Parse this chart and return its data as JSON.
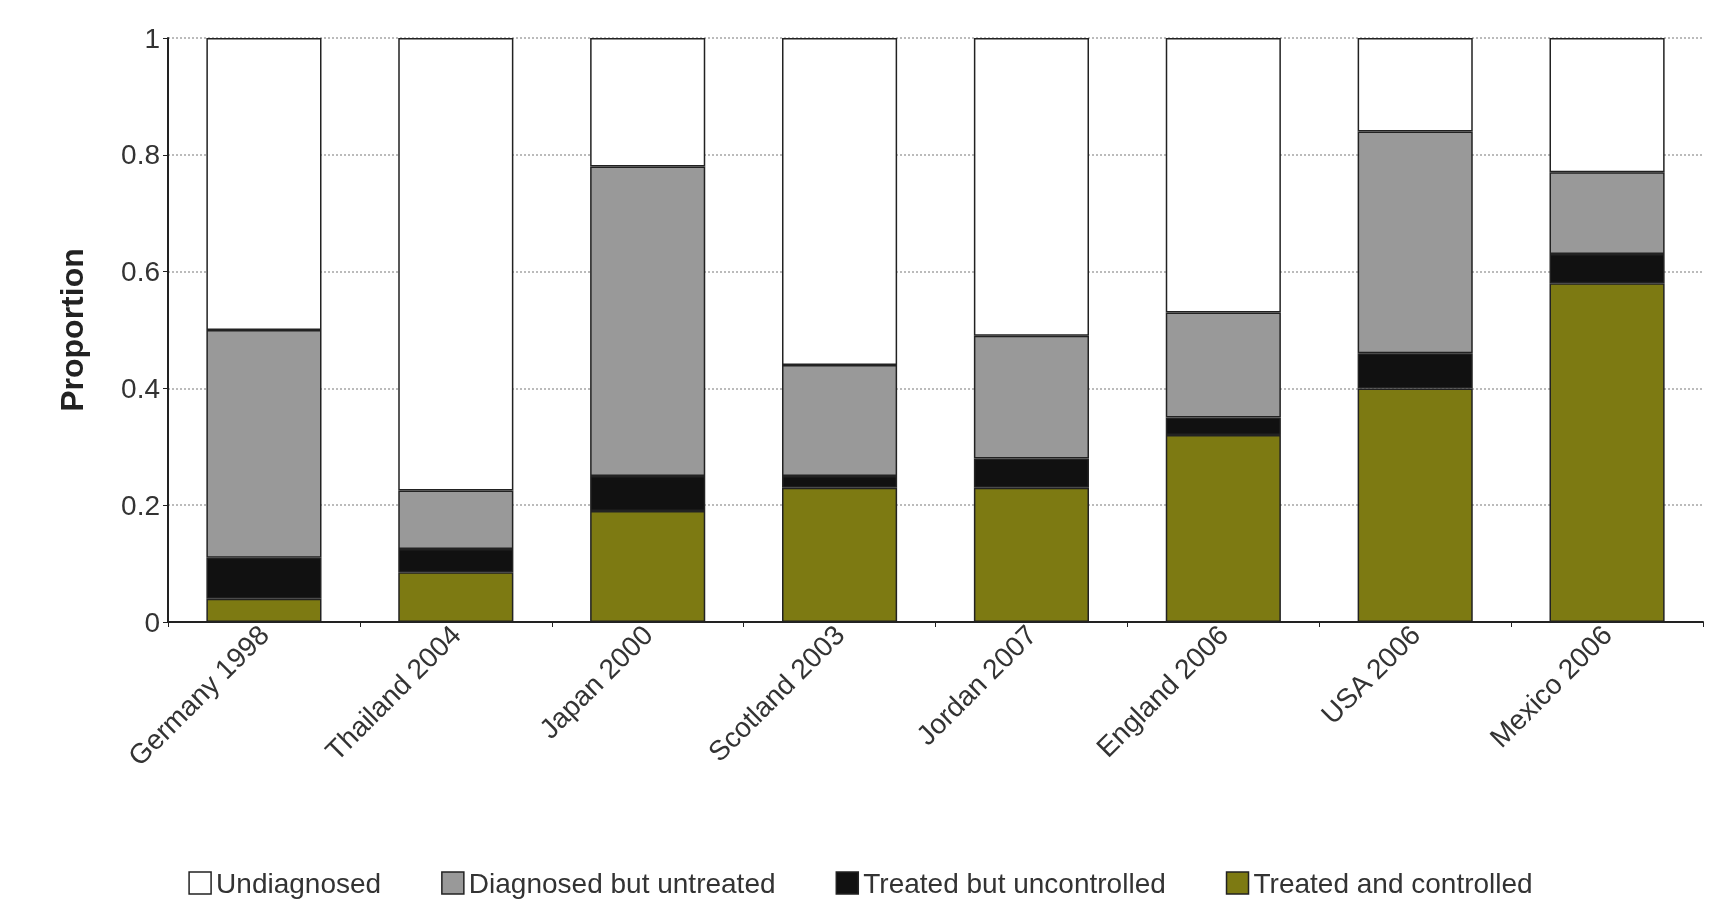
{
  "chart_data": {
    "type": "bar",
    "stacked": true,
    "ylabel": "Proportion",
    "categories": [
      "Germany 1998",
      "Thailand 2004",
      "Japan 2000",
      "Scotland 2003",
      "Jordan 2007",
      "England 2006",
      "USA 2006",
      "Mexico 2006"
    ],
    "series": [
      {
        "name": "Treated and controlled",
        "color": "#7d7a12",
        "values": [
          0.04,
          0.085,
          0.19,
          0.23,
          0.23,
          0.32,
          0.4,
          0.58
        ]
      },
      {
        "name": "Treated but uncontrolled",
        "color": "#111111",
        "values": [
          0.07,
          0.04,
          0.06,
          0.02,
          0.05,
          0.03,
          0.06,
          0.05
        ]
      },
      {
        "name": "Diagnosed but untreated",
        "color": "#999999",
        "values": [
          0.39,
          0.1,
          0.53,
          0.19,
          0.21,
          0.18,
          0.38,
          0.14
        ]
      },
      {
        "name": "Undiagnosed",
        "color": "#ffffff",
        "values": [
          0.5,
          0.775,
          0.22,
          0.56,
          0.51,
          0.47,
          0.16,
          0.23
        ]
      }
    ],
    "ylim": [
      0,
      1
    ],
    "yticks": [
      0,
      0.2,
      0.4,
      0.6,
      0.8,
      1
    ],
    "grid": "y",
    "legend": "bottom"
  }
}
